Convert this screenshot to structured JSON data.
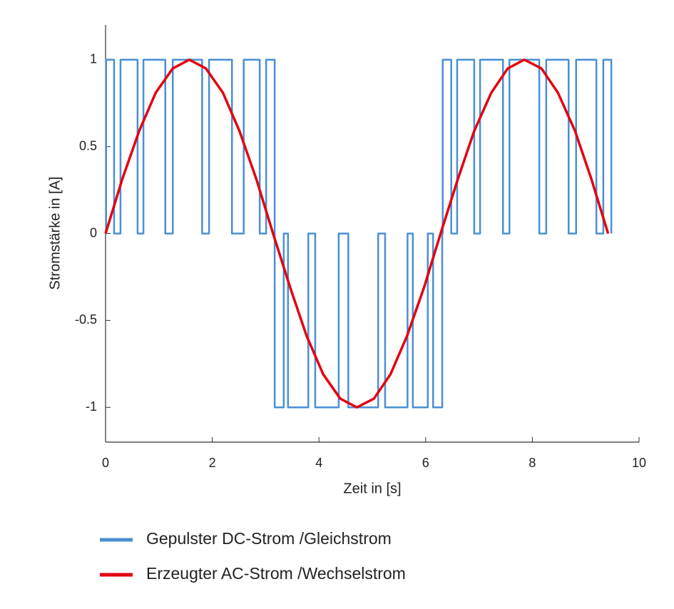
{
  "chart_data": {
    "type": "line",
    "xlabel": "Zeit in [s]",
    "ylabel": "Stromstärke in [A]",
    "xlim": [
      0,
      10
    ],
    "xticks": [
      0,
      2,
      4,
      6,
      8,
      10
    ],
    "ylim": [
      -1.2,
      1.2
    ],
    "yticks": [
      -1,
      -0.5,
      0,
      0.5,
      1
    ],
    "series": [
      {
        "name": "Gepulster DC-Strom /Gleichstrom",
        "color": "#4a8fd4",
        "x": [
          0,
          0.01,
          0.01,
          0.16,
          0.16,
          0.28,
          0.28,
          0.6,
          0.6,
          0.71,
          0.71,
          1.12,
          1.12,
          1.26,
          1.26,
          1.81,
          1.81,
          1.94,
          1.94,
          2.37,
          2.37,
          2.59,
          2.59,
          2.89,
          2.89,
          3.01,
          3.01,
          3.17,
          3.17,
          3.17,
          3.17,
          3.34,
          3.34,
          3.42,
          3.42,
          3.8,
          3.8,
          3.93,
          3.93,
          4.37,
          4.37,
          4.55,
          4.55,
          5.11,
          5.11,
          5.24,
          5.24,
          5.66,
          5.66,
          5.76,
          5.76,
          6.04,
          6.04,
          6.14,
          6.14,
          6.31,
          6.31,
          6.32,
          6.32,
          6.48,
          6.48,
          6.59,
          6.59,
          6.91,
          6.91,
          7.02,
          7.02,
          7.45,
          7.45,
          7.57,
          7.57,
          8.13,
          8.13,
          8.26,
          8.26,
          8.68,
          8.68,
          8.82,
          8.82,
          9.2,
          9.2,
          9.33,
          9.33,
          9.48,
          9.48
        ],
        "values": [
          0,
          0,
          1,
          1,
          0,
          0,
          1,
          1,
          0,
          0,
          1,
          1,
          0,
          0,
          1,
          1,
          0,
          0,
          1,
          1,
          0,
          0,
          1,
          1,
          0,
          0,
          1,
          1,
          0,
          0,
          -1,
          -1,
          0,
          0,
          -1,
          -1,
          0,
          0,
          -1,
          -1,
          0,
          0,
          -1,
          -1,
          0,
          0,
          -1,
          -1,
          0,
          0,
          -1,
          -1,
          0,
          0,
          -1,
          -1,
          0,
          0,
          1,
          1,
          0,
          0,
          1,
          1,
          0,
          0,
          1,
          1,
          0,
          0,
          1,
          1,
          0,
          0,
          1,
          1,
          0,
          0,
          1,
          1,
          0,
          0,
          1,
          1,
          0
        ]
      },
      {
        "name": "Erzeugter AC-Strom /Wechselstrom",
        "color": "#e3000f",
        "x": [
          0,
          0.31,
          0.63,
          0.94,
          1.26,
          1.57,
          1.88,
          2.2,
          2.51,
          2.83,
          3.14,
          3.46,
          3.77,
          4.08,
          4.4,
          4.71,
          5.03,
          5.34,
          5.65,
          5.97,
          6.28,
          6.6,
          6.91,
          7.23,
          7.54,
          7.85,
          8.17,
          8.48,
          8.8,
          9.11,
          9.42
        ],
        "values": [
          0,
          0.31,
          0.59,
          0.81,
          0.95,
          1,
          0.95,
          0.81,
          0.59,
          0.31,
          0,
          -0.31,
          -0.59,
          -0.81,
          -0.95,
          -1,
          -0.95,
          -0.81,
          -0.59,
          -0.31,
          0,
          0.31,
          0.59,
          0.81,
          0.95,
          1,
          0.95,
          0.81,
          0.59,
          0.31,
          0
        ]
      }
    ]
  }
}
